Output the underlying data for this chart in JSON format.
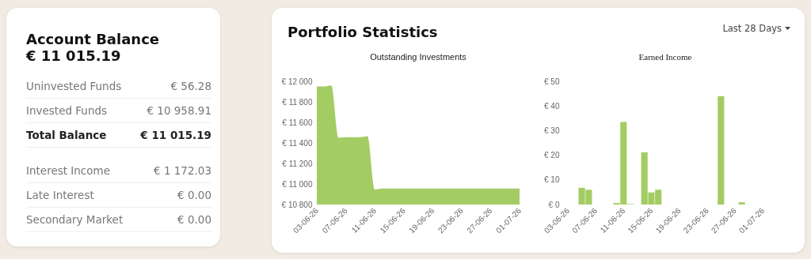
{
  "chart_data": [
    {
      "type": "other",
      "title": "Account Balance",
      "subtitle": "€ 11 015.19",
      "annotations": [
        "Uninvested Funds",
        "€ 56.28",
        "Invested Funds",
        "€ 10 958.91",
        "Total Balance",
        "€ 11 015.19",
        "Interest Income",
        "€ 1 172.03",
        "Late Interest",
        "€ 0.00",
        "Secondary Market",
        "€ 0.00"
      ]
    },
    {
      "type": "other",
      "title": "Portfolio Statistics",
      "annotations": [
        "Last 28 Days"
      ]
    },
    {
      "type": "area",
      "title": "Outstanding Investments",
      "x": [
        "--06-03",
        "--06-04",
        "--06-05",
        "--06-06",
        "--06-07",
        "--06-08",
        "--06-09",
        "--06-10",
        "--06-11",
        "--06-12",
        "--06-13",
        "--06-14",
        "--06-15",
        "--06-16",
        "--06-17",
        "--06-18",
        "--06-19",
        "--06-20",
        "--06-21",
        "--06-22",
        "--06-23",
        "--06-24",
        "--06-25",
        "--06-26",
        "--06-27",
        "--06-28",
        "--06-29",
        "--06-30",
        "--07-01"
      ],
      "series": [
        {
          "color": "#a3cc63",
          "values": [
            11950,
            11950,
            11960,
            11450,
            11455,
            11455,
            11455,
            11465,
            10945,
            10955,
            10955,
            10955,
            10955,
            10955,
            10955,
            10955,
            10955,
            10955,
            10955,
            10955,
            10955,
            10955,
            10955,
            10955,
            10955,
            10955,
            10955,
            10955,
            10955
          ]
        }
      ],
      "xlim": [
        "--06-03",
        "--07-01"
      ],
      "xticks": [
        {
          "value": "--06-03",
          "label": "03-06-26"
        },
        {
          "value": "--06-07",
          "label": "07-06-26"
        },
        {
          "value": "--06-11",
          "label": "11-06-26"
        },
        {
          "value": "--06-15",
          "label": "15-06-26"
        },
        {
          "value": "--06-19",
          "label": "19-06-26"
        },
        {
          "value": "--06-23",
          "label": "23-06-26"
        },
        {
          "value": "--06-27",
          "label": "27-06-26"
        },
        {
          "value": "--07-01",
          "label": "01-07-26"
        }
      ],
      "ylim": [
        10800,
        12000
      ],
      "yticks": [
        {
          "value": 10800,
          "label": "€ 10 800"
        },
        {
          "value": 11000,
          "label": "€ 11 000"
        },
        {
          "value": 11200,
          "label": "€ 11 200"
        },
        {
          "value": 11400,
          "label": "€ 11 400"
        },
        {
          "value": 11600,
          "label": "€ 11 600"
        },
        {
          "value": 11800,
          "label": "€ 11 800"
        },
        {
          "value": 12000,
          "label": "€ 12 000"
        }
      ],
      "grid": false
    },
    {
      "type": "bar",
      "title": "Earned Income",
      "x": [
        "--06-05",
        "--06-06",
        "--06-10",
        "--06-11",
        "--06-12",
        "--06-14",
        "--06-15",
        "--06-16",
        "--06-25",
        "--06-28"
      ],
      "series": [
        {
          "color": "#a3cc63",
          "values": [
            6.8,
            6.0,
            0.6,
            33.5,
            0.2,
            21.2,
            4.9,
            6.0,
            44.0,
            0.9
          ]
        }
      ],
      "xlim": [
        "--06-03",
        "--07-01"
      ],
      "xticks": [
        {
          "value": "--06-03",
          "label": "03-06-26"
        },
        {
          "value": "--06-07",
          "label": "07-06-26"
        },
        {
          "value": "--06-11",
          "label": "11-06-26"
        },
        {
          "value": "--06-15",
          "label": "15-06-26"
        },
        {
          "value": "--06-19",
          "label": "19-06-26"
        },
        {
          "value": "--06-23",
          "label": "23-06-26"
        },
        {
          "value": "--06-27",
          "label": "27-06-26"
        },
        {
          "value": "--07-01",
          "label": "01-07-26"
        }
      ],
      "ylim": [
        0,
        50
      ],
      "yticks": [
        {
          "value": 0,
          "label": "€ 0"
        },
        {
          "value": 10,
          "label": "€ 10"
        },
        {
          "value": 20,
          "label": "€ 20"
        },
        {
          "value": 30,
          "label": "€ 30"
        },
        {
          "value": 40,
          "label": "€ 40"
        },
        {
          "value": 50,
          "label": "€ 50"
        }
      ],
      "grid": false
    }
  ]
}
